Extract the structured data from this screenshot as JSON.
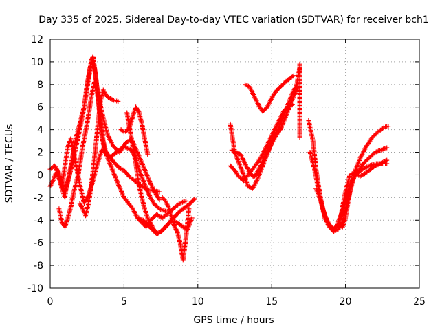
{
  "chart_data": {
    "type": "scatter",
    "title": "Day 335 of 2025, Sidereal Day-to-day VTEC variation (SDTVAR) for receiver bch1",
    "xlabel": "GPS time / hours",
    "ylabel": "SDTVAR / TECUs",
    "xlim": [
      0,
      25
    ],
    "ylim": [
      -10,
      12
    ],
    "xticks": [
      0,
      5,
      10,
      15,
      20,
      25
    ],
    "yticks": [
      -10,
      -8,
      -6,
      -4,
      -2,
      0,
      2,
      4,
      6,
      8,
      10,
      12
    ],
    "grid": true,
    "marker": "plus",
    "color": "#ff0000",
    "series": [
      {
        "name": "s1",
        "x": [
          0.0,
          0.3,
          0.6,
          0.8,
          1.0,
          1.2,
          1.5,
          1.8,
          2.0,
          2.3,
          2.6,
          2.8,
          3.0,
          3.2,
          3.4,
          3.6,
          3.8,
          4.2,
          4.6,
          5.0,
          5.3,
          5.6,
          5.9,
          6.2,
          6.5,
          6.8,
          7.2,
          7.6,
          8.0,
          8.4,
          8.8,
          9.2
        ],
        "y": [
          0.5,
          0.8,
          0.2,
          -0.8,
          -1.5,
          -0.6,
          1.0,
          2.8,
          4.0,
          6.0,
          8.5,
          10.2,
          9.5,
          7.5,
          5.0,
          3.0,
          1.8,
          0.5,
          -0.8,
          -2.0,
          -2.5,
          -3.0,
          -3.8,
          -4.2,
          -4.6,
          -4.0,
          -3.5,
          -3.8,
          -3.4,
          -2.9,
          -2.5,
          -2.3
        ]
      },
      {
        "name": "s2",
        "x": [
          0.0,
          0.2,
          0.4,
          0.6,
          0.8,
          1.0,
          1.1,
          1.3,
          1.5,
          1.7,
          2.0,
          2.3,
          2.5,
          2.7,
          2.9,
          3.1,
          3.3,
          3.5,
          3.7,
          4.0,
          4.5,
          5.0,
          5.5,
          5.8,
          6.0,
          6.3,
          6.6,
          7.0,
          7.4,
          7.8
        ],
        "y": [
          -1.0,
          -0.5,
          0.2,
          -0.3,
          -1.2,
          -2.0,
          -1.0,
          0.0,
          1.5,
          3.0,
          4.5,
          6.0,
          8.0,
          9.5,
          10.5,
          8.5,
          6.0,
          3.5,
          2.0,
          1.5,
          2.0,
          2.5,
          2.2,
          1.5,
          0.5,
          -0.5,
          -1.5,
          -2.5,
          -3.0,
          -3.2
        ]
      },
      {
        "name": "s3",
        "x": [
          0.6,
          0.8,
          1.0,
          1.2,
          1.4,
          1.6,
          1.9,
          2.2,
          2.5,
          2.8,
          3.0,
          3.2,
          3.4,
          3.6,
          3.9,
          4.3,
          4.7,
          5.1,
          5.5,
          5.9,
          6.3,
          6.7,
          7.0,
          7.4
        ],
        "y": [
          -3.0,
          -4.2,
          -4.6,
          -3.8,
          -2.8,
          -1.5,
          0.0,
          2.5,
          4.5,
          7.0,
          8.2,
          7.5,
          6.2,
          5.0,
          3.5,
          2.5,
          2.0,
          2.8,
          3.2,
          2.0,
          0.8,
          -0.5,
          -1.3,
          -2.2
        ]
      },
      {
        "name": "s4",
        "x": [
          0.4,
          0.6,
          0.8,
          1.0,
          1.2,
          1.4,
          1.7,
          2.0,
          2.3,
          2.6,
          2.9,
          3.2,
          3.5,
          3.8,
          4.1,
          4.4,
          4.7,
          5.0,
          5.4,
          5.8,
          6.2,
          6.6,
          7.0,
          7.4
        ],
        "y": [
          0.6,
          -0.2,
          -1.0,
          0.8,
          2.5,
          3.2,
          1.2,
          -0.8,
          -2.5,
          -1.8,
          -0.5,
          1.0,
          2.2,
          2.0,
          1.5,
          1.0,
          0.6,
          0.4,
          -0.2,
          -0.6,
          -1.0,
          -1.3,
          -1.4,
          -1.5
        ]
      },
      {
        "name": "s5",
        "x": [
          2.0,
          2.2,
          2.4,
          2.6,
          2.8,
          3.0,
          3.2,
          3.4,
          3.6,
          3.8,
          4.0,
          4.3,
          4.6
        ],
        "y": [
          -2.5,
          -3.0,
          -3.6,
          -2.5,
          -0.8,
          1.5,
          4.0,
          6.5,
          7.5,
          7.0,
          6.8,
          6.6,
          6.5
        ]
      },
      {
        "name": "s6",
        "x": [
          4.8,
          5.0,
          5.2,
          5.4,
          5.6,
          5.8,
          6.0,
          6.2,
          6.4,
          6.6
        ],
        "y": [
          4.0,
          3.8,
          3.9,
          4.3,
          5.2,
          6.0,
          5.6,
          4.6,
          3.2,
          1.8
        ]
      },
      {
        "name": "s7",
        "x": [
          5.2,
          5.4,
          5.6,
          5.8,
          6.0,
          6.2,
          6.4,
          6.6,
          6.8,
          7.0,
          7.3,
          7.6,
          7.9,
          8.2,
          8.5,
          8.8,
          9.0,
          9.2,
          9.5,
          9.8
        ],
        "y": [
          5.5,
          4.0,
          2.5,
          1.0,
          -0.8,
          -2.0,
          -3.0,
          -3.8,
          -4.3,
          -4.8,
          -5.2,
          -4.9,
          -4.5,
          -4.0,
          -3.6,
          -3.2,
          -3.0,
          -2.8,
          -2.5,
          -2.1
        ]
      },
      {
        "name": "s8",
        "x": [
          7.6,
          7.8,
          8.0,
          8.2,
          8.4,
          8.6,
          8.8,
          9.0,
          9.2,
          9.4
        ],
        "y": [
          -2.0,
          -2.3,
          -2.8,
          -3.6,
          -4.5,
          -5.0,
          -6.0,
          -7.5,
          -5.5,
          -3.0
        ]
      },
      {
        "name": "s9",
        "x": [
          6.0,
          6.3,
          6.6,
          6.9,
          7.2,
          7.5,
          7.8,
          8.1,
          8.4,
          8.7,
          9.0,
          9.3,
          9.6
        ],
        "y": [
          -3.8,
          -4.0,
          -4.4,
          -4.8,
          -5.2,
          -5.0,
          -4.6,
          -4.2,
          -4.1,
          -4.3,
          -4.6,
          -4.8,
          -3.8
        ]
      },
      {
        "name": "s10",
        "x": [
          12.2,
          12.5,
          12.8,
          13.1,
          13.4,
          13.7,
          14.0,
          14.3,
          14.6,
          14.9,
          15.2,
          15.5,
          15.8,
          16.1,
          16.4,
          16.7,
          16.9
        ],
        "y": [
          4.5,
          2.0,
          1.0,
          0.0,
          -1.0,
          -1.2,
          -0.5,
          0.5,
          1.5,
          2.5,
          3.5,
          4.2,
          5.2,
          6.2,
          7.2,
          8.0,
          9.5
        ]
      },
      {
        "name": "s11",
        "x": [
          12.3,
          12.6,
          12.9,
          13.2,
          13.5,
          13.8,
          14.1,
          14.4,
          14.7,
          15.0,
          15.3,
          15.6,
          15.9,
          16.2,
          16.5,
          16.8
        ],
        "y": [
          2.2,
          2.0,
          1.8,
          1.0,
          0.2,
          -0.2,
          0.4,
          1.2,
          2.0,
          2.8,
          3.5,
          4.0,
          5.0,
          6.0,
          7.0,
          7.8
        ]
      },
      {
        "name": "s12",
        "x": [
          12.2,
          12.5,
          12.8,
          13.1,
          13.4,
          13.7,
          14.0,
          14.3,
          14.6,
          14.9,
          15.2,
          15.5,
          15.8,
          16.1,
          16.4
        ],
        "y": [
          0.8,
          0.4,
          -0.2,
          -0.5,
          0.0,
          0.5,
          1.0,
          1.6,
          2.4,
          3.2,
          4.0,
          4.8,
          5.6,
          6.0,
          6.2
        ]
      },
      {
        "name": "s13",
        "x": [
          13.2,
          13.5,
          13.8,
          14.1,
          14.4,
          14.7,
          15.0,
          15.3,
          15.6,
          15.9,
          16.2,
          16.5
        ],
        "y": [
          8.0,
          7.8,
          7.0,
          6.2,
          5.6,
          6.0,
          6.8,
          7.4,
          7.8,
          8.2,
          8.5,
          8.8
        ]
      },
      {
        "name": "s14",
        "x": [
          16.9,
          16.9,
          16.9
        ],
        "y": [
          9.8,
          5.4,
          3.3
        ]
      },
      {
        "name": "s15",
        "x": [
          17.5,
          17.8,
          18.0,
          18.3,
          18.6,
          18.9,
          19.2,
          19.5,
          19.8,
          20.1,
          20.4,
          20.7,
          21.0,
          21.4,
          21.8,
          22.2,
          22.6,
          22.9
        ],
        "y": [
          4.8,
          3.0,
          0.5,
          -2.0,
          -3.8,
          -4.6,
          -5.0,
          -4.8,
          -4.2,
          -2.5,
          -1.0,
          0.5,
          1.5,
          2.5,
          3.3,
          3.8,
          4.2,
          4.3
        ]
      },
      {
        "name": "s16",
        "x": [
          17.6,
          17.9,
          18.2,
          18.5,
          18.8,
          19.1,
          19.4,
          19.7,
          20.0,
          20.3,
          20.6,
          20.9,
          21.2,
          21.6,
          22.0,
          22.4,
          22.8
        ],
        "y": [
          2.0,
          0.5,
          -1.5,
          -3.2,
          -4.2,
          -4.8,
          -4.6,
          -3.5,
          -1.5,
          0.0,
          0.2,
          0.4,
          1.0,
          1.5,
          2.0,
          2.2,
          2.4
        ]
      },
      {
        "name": "s17",
        "x": [
          18.0,
          18.3,
          18.6,
          18.9,
          19.2,
          19.5,
          19.8,
          20.1,
          20.4,
          20.7,
          21.0,
          21.3,
          21.6,
          22.0,
          22.4,
          22.8
        ],
        "y": [
          -1.2,
          -2.2,
          -3.6,
          -4.4,
          -4.8,
          -4.4,
          -3.2,
          -1.8,
          -0.6,
          0.0,
          0.4,
          0.6,
          0.8,
          1.0,
          1.0,
          1.0
        ]
      },
      {
        "name": "s18",
        "x": [
          19.6,
          19.8,
          20.0,
          20.2,
          20.4,
          20.6,
          20.8,
          21.0,
          21.3,
          21.6,
          21.9,
          22.2,
          22.5,
          22.8
        ],
        "y": [
          -4.4,
          -4.6,
          -3.8,
          -2.2,
          -0.8,
          0.0,
          0.0,
          -0.1,
          0.1,
          0.4,
          0.7,
          0.9,
          1.1,
          1.3
        ]
      }
    ]
  }
}
